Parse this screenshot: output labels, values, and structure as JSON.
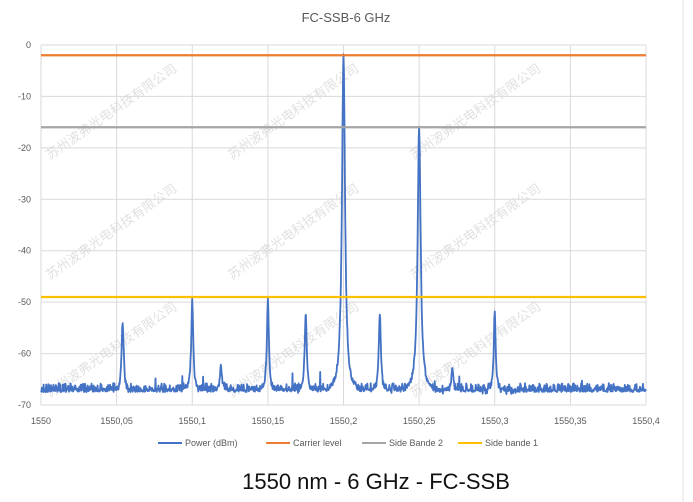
{
  "chart_data": {
    "type": "line",
    "title": "FC-SSB-6 GHz",
    "caption": "1550 nm - 6 GHz - FC-SSB",
    "xlabel": "",
    "ylabel": "",
    "xlim": [
      1550,
      1550.4
    ],
    "ylim": [
      -70,
      0
    ],
    "x_ticks": [
      "1550",
      "1550,05",
      "1550,1",
      "1550,15",
      "1550,2",
      "1550,25",
      "1550,3",
      "1550,35",
      "1550,4"
    ],
    "x_tick_values": [
      1550,
      1550.05,
      1550.1,
      1550.15,
      1550.2,
      1550.25,
      1550.3,
      1550.35,
      1550.4
    ],
    "y_ticks": [
      "0",
      "-10",
      "-20",
      "-30",
      "-40",
      "-50",
      "-60",
      "-70"
    ],
    "y_tick_values": [
      0,
      -10,
      -20,
      -30,
      -40,
      -50,
      -60,
      -70
    ],
    "grid": true,
    "legend_placement": "bottom",
    "series": [
      {
        "name": "Power (dBm)",
        "color": "#4472C4",
        "noise_floor": -67.5,
        "peaks": [
          {
            "x": 1550.054,
            "y": -53.5
          },
          {
            "x": 1550.1,
            "y": -49.5
          },
          {
            "x": 1550.119,
            "y": -62
          },
          {
            "x": 1550.15,
            "y": -49.5
          },
          {
            "x": 1550.175,
            "y": -52
          },
          {
            "x": 1550.2,
            "y": -2
          },
          {
            "x": 1550.224,
            "y": -52
          },
          {
            "x": 1550.25,
            "y": -16
          },
          {
            "x": 1550.272,
            "y": -63
          },
          {
            "x": 1550.3,
            "y": -52
          }
        ]
      },
      {
        "name": "Carrier level",
        "color": "#ED7D31",
        "value": -2
      },
      {
        "name": "Side Bande 2",
        "color": "#A5A5A5",
        "value": -16
      },
      {
        "name": "Side bande 1",
        "color": "#FFC000",
        "value": -49
      }
    ],
    "watermark": "苏州波弗光电科技有限公司"
  }
}
